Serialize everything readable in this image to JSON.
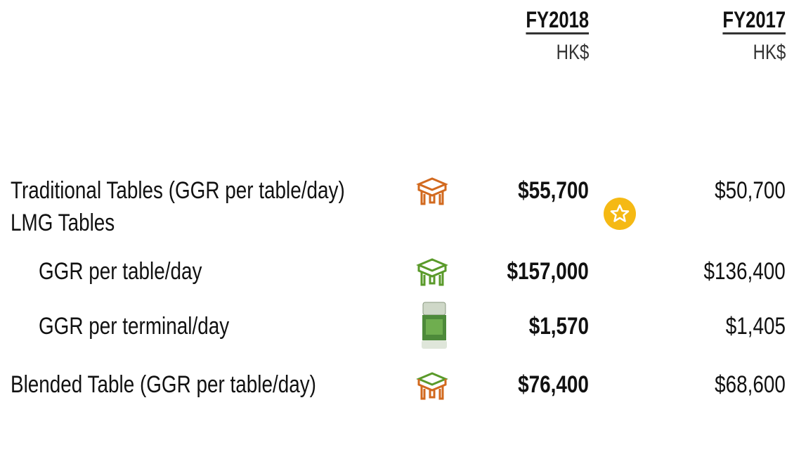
{
  "header": {
    "columns": [
      {
        "title": "FY2018",
        "unit": "HK$"
      },
      {
        "title": "FY2017",
        "unit": "HK$"
      }
    ]
  },
  "table": {
    "rows": [
      {
        "label": "Traditional Tables (GGR per table/day)",
        "fy2018": "$55,700",
        "fy2017": "$50,700"
      },
      {
        "label": "LMG Tables",
        "rows": [
          {
            "label": "GGR per table/day",
            "fy2018": "$157,000",
            "fy2017": "$136,400"
          },
          {
            "label": "GGR per terminal/day",
            "fy2018": "$1,570",
            "fy2017": "$1,405"
          }
        ]
      },
      {
        "label": "Blended Table (GGR per table/day)",
        "fy2018": "$76,400",
        "fy2017": "$68,600"
      }
    ]
  }
}
